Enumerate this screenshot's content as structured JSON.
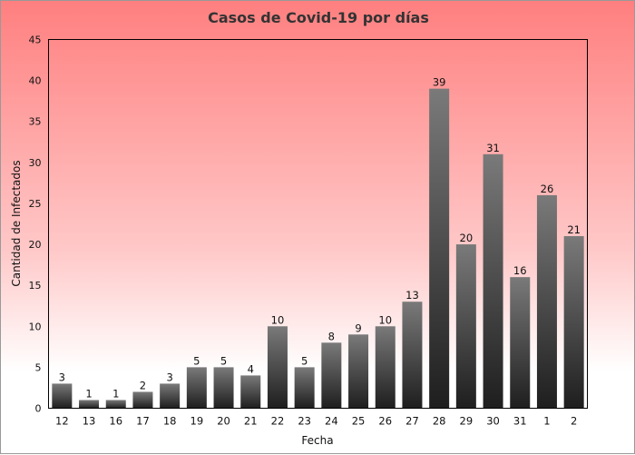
{
  "chart_data": {
    "type": "bar",
    "title": "Casos de Covid-19 por días",
    "xlabel": "Fecha",
    "ylabel": "Cantidad de Infectados",
    "categories": [
      "12",
      "13",
      "16",
      "17",
      "18",
      "19",
      "20",
      "21",
      "22",
      "23",
      "24",
      "25",
      "26",
      "27",
      "28",
      "29",
      "30",
      "31",
      "1",
      "2"
    ],
    "values": [
      3,
      1,
      1,
      2,
      3,
      5,
      5,
      4,
      10,
      5,
      8,
      9,
      10,
      13,
      39,
      20,
      31,
      16,
      26,
      21
    ],
    "ylim": [
      0,
      45
    ],
    "yticks": [
      0,
      5,
      10,
      15,
      20,
      25,
      30,
      35,
      40,
      45
    ],
    "grid": false,
    "legend": "none",
    "colors": {
      "bar_top": "#7a7a7a",
      "bar_bottom": "#1e1e1e",
      "background_top": "#ff7f7f",
      "background_bottom": "#ffffff"
    }
  }
}
